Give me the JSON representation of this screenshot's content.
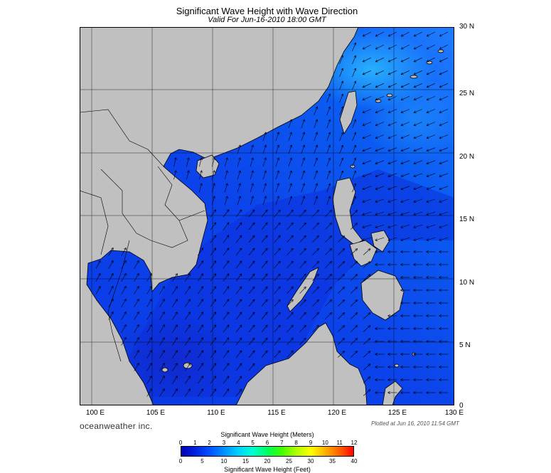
{
  "header": {
    "title": "Significant Wave Height with Wave Direction",
    "subtitle": "Valid For Jun-16-2010 18:00 GMT"
  },
  "map": {
    "region": "South China Sea",
    "lon_range": [
      99,
      130
    ],
    "lat_range": [
      0,
      30
    ],
    "land_color": "#c0c0c0",
    "grid": true,
    "lat_labels": [
      "30 N",
      "25 N",
      "20 N",
      "15 N",
      "10 N",
      "5 N",
      "0"
    ],
    "lon_labels": [
      "100 E",
      "105 E",
      "110 E",
      "115 E",
      "120 E",
      "125 E",
      "130 E"
    ]
  },
  "footer": {
    "brand": "oceanweather inc.",
    "plotted": "Plotted at Jun 16, 2010 11:54 GMT"
  },
  "legend": {
    "meters_title": "Significant Wave Height (Meters)",
    "feet_title": "Significant Wave Height (Feet)",
    "meters_ticks": [
      "0",
      "1",
      "2",
      "3",
      "4",
      "5",
      "6",
      "7",
      "8",
      "9",
      "10",
      "11",
      "12"
    ],
    "feet_ticks": [
      "0",
      "5",
      "10",
      "15",
      "20",
      "25",
      "30",
      "35",
      "40"
    ],
    "colors": [
      "#0000b0",
      "#0020e0",
      "#0050ff",
      "#0090ff",
      "#00d0ff",
      "#00ffd0",
      "#00ff60",
      "#40ff00",
      "#b0ff00",
      "#ffff00",
      "#ffb000",
      "#ff6000",
      "#ff0000"
    ]
  }
}
